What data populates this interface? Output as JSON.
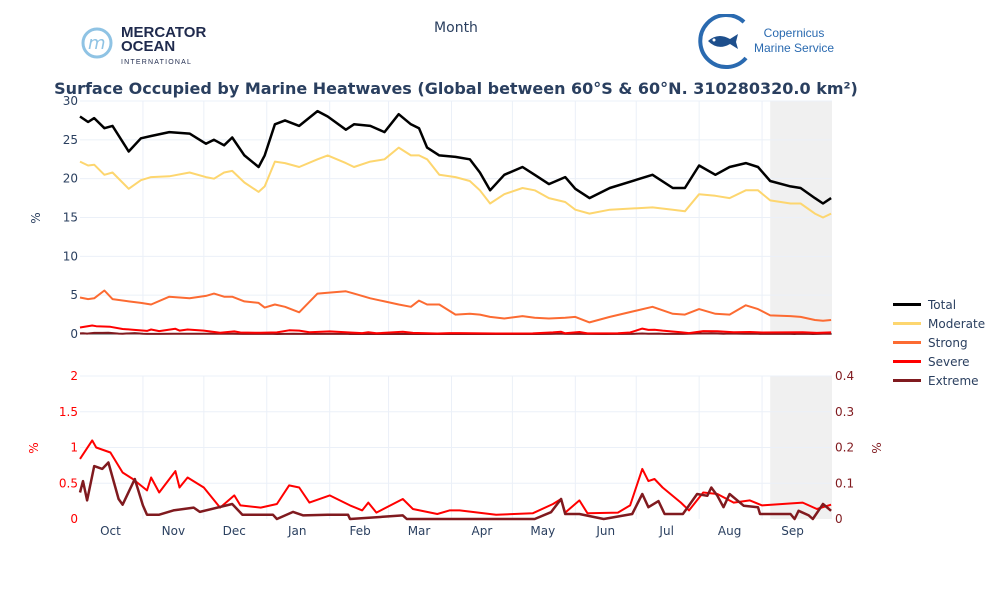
{
  "header": {
    "x_axis_title": "Month",
    "title": "Surface Occupied by Marine Heatwaves (Global between 60°S & 60°N. 310280320.0 km²)",
    "logo_left": {
      "line1": "MERCATOR",
      "line2": "OCEAN",
      "line3": "INTERNATIONAL"
    },
    "logo_right": {
      "line1": "Copernicus",
      "line2": "Marine Service"
    }
  },
  "colors": {
    "Total": "#000000",
    "Moderate": "#fdd66f",
    "Strong": "#fc6b32",
    "Severe": "#ff0000",
    "Extreme": "#801a1f",
    "axis_text": "#2a3f5f",
    "grid": "#ebf0f8",
    "shade": "#f0f0f0"
  },
  "chart_data": [
    {
      "type": "line",
      "title": "Surface Occupied by Marine Heatwaves (Global between 60°S & 60°N. 310280320.0 km²)",
      "xlabel": "Month",
      "ylabel": "%",
      "ylim": [
        0,
        30
      ],
      "yticks": [
        "0",
        "5",
        "10",
        "15",
        "20",
        "25",
        "30"
      ],
      "x_unit": "days since Oct 1",
      "month_ticks": [
        "Oct",
        "Nov",
        "Dec",
        "Jan",
        "Feb",
        "Mar",
        "Apr",
        "May",
        "Jun",
        "Jul",
        "Aug",
        "Sep"
      ],
      "shaded_from_day": 340,
      "grid": true,
      "legend_position": "right",
      "x": [
        0,
        4,
        7,
        12,
        16,
        24,
        30,
        35,
        44,
        54,
        62,
        66,
        71,
        75,
        81,
        88,
        91,
        96,
        101,
        108,
        117,
        122,
        131,
        135,
        143,
        150,
        157,
        163,
        167,
        171,
        177,
        185,
        192,
        197,
        202,
        209,
        218,
        224,
        231,
        239,
        244,
        251,
        261,
        282,
        292,
        298,
        305,
        313,
        320,
        328,
        334,
        340,
        350,
        355,
        362,
        366,
        370
      ],
      "series": [
        {
          "name": "Total",
          "values": [
            28,
            27.3,
            27.8,
            26.5,
            26.8,
            23.5,
            25.2,
            25.5,
            26,
            25.8,
            24.5,
            25,
            24.3,
            25.3,
            23,
            21.5,
            23,
            27,
            27.5,
            26.8,
            28.7,
            28,
            26.3,
            27,
            26.8,
            26,
            28.3,
            27,
            26.5,
            24,
            23,
            22.8,
            22.5,
            20.8,
            18.5,
            20.5,
            21.5,
            20.5,
            19.3,
            20.2,
            18.7,
            17.5,
            18.8,
            20.5,
            18.8,
            18.8,
            21.7,
            20.5,
            21.5,
            22,
            21.5,
            19.7,
            19,
            18.8,
            17.5,
            16.8,
            17.5
          ]
        },
        {
          "name": "Moderate",
          "values": [
            22.2,
            21.7,
            21.8,
            20.5,
            20.8,
            18.7,
            19.8,
            20.2,
            20.3,
            20.8,
            20.2,
            20,
            20.8,
            21,
            19.5,
            18.3,
            19,
            22.2,
            22,
            21.5,
            22.5,
            23,
            22,
            21.5,
            22.2,
            22.5,
            24,
            23,
            23,
            22.5,
            20.5,
            20.2,
            19.7,
            18.5,
            16.8,
            18,
            18.8,
            18.5,
            17.5,
            17,
            16,
            15.5,
            16,
            16.3,
            16,
            15.8,
            18,
            17.8,
            17.5,
            18.5,
            18.5,
            17.2,
            16.8,
            16.8,
            15.5,
            15,
            15.5
          ]
        },
        {
          "name": "Strong",
          "values": [
            4.7,
            4.5,
            4.6,
            5.6,
            4.5,
            4.2,
            4,
            3.8,
            4.8,
            4.6,
            4.9,
            5.2,
            4.8,
            4.8,
            4.2,
            4,
            3.4,
            3.8,
            3.5,
            2.8,
            5.2,
            5.3,
            5.5,
            5.2,
            4.6,
            4.2,
            3.8,
            3.5,
            4.3,
            3.8,
            3.8,
            2.5,
            2.6,
            2.5,
            2.2,
            2,
            2.3,
            2.1,
            2,
            2.1,
            2.2,
            1.5,
            2.2,
            3.5,
            2.6,
            2.5,
            3.2,
            2.6,
            2.5,
            3.7,
            3.2,
            2.4,
            2.3,
            2.2,
            1.8,
            1.7,
            1.8
          ]
        }
      ]
    },
    {
      "type": "line",
      "ylabel_left": "%",
      "ylabel_right": "%",
      "ylim_left": [
        0,
        2
      ],
      "ylim_right": [
        0,
        0.4
      ],
      "yticks_left": [
        "0",
        "0.5",
        "1",
        "1.5",
        "2"
      ],
      "yticks_right": [
        "0",
        "0.1",
        "0.2",
        "0.3",
        "0.4"
      ],
      "series": [
        {
          "name": "Severe",
          "axis": "left",
          "x": [
            0,
            6,
            8,
            15,
            21,
            26,
            33,
            35,
            39,
            47,
            49,
            53,
            61,
            69,
            76,
            79,
            89,
            97,
            103,
            108,
            113,
            123,
            133,
            139,
            142,
            146,
            159,
            164,
            176,
            182,
            187,
            205,
            223,
            233,
            237,
            239,
            246,
            250,
            265,
            271,
            277,
            280,
            283,
            287,
            296,
            300,
            307,
            314,
            322,
            330,
            336,
            346,
            356,
            363,
            370
          ],
          "values": [
            0.84,
            1.1,
            1.0,
            0.93,
            0.65,
            0.56,
            0.4,
            0.58,
            0.37,
            0.67,
            0.44,
            0.58,
            0.44,
            0.16,
            0.33,
            0.19,
            0.16,
            0.21,
            0.47,
            0.44,
            0.23,
            0.33,
            0.19,
            0.12,
            0.23,
            0.09,
            0.28,
            0.14,
            0.07,
            0.12,
            0.12,
            0.06,
            0.08,
            0.21,
            0.28,
            0.09,
            0.26,
            0.08,
            0.09,
            0.19,
            0.7,
            0.53,
            0.56,
            0.44,
            0.23,
            0.12,
            0.37,
            0.35,
            0.23,
            0.26,
            0.19,
            0.21,
            0.23,
            0.14,
            0.2
          ]
        },
        {
          "name": "Extreme",
          "axis": "right",
          "x": [
            0,
            1.5,
            3.5,
            7,
            11,
            14,
            19,
            21,
            27,
            31,
            33,
            39,
            46,
            56,
            59,
            75,
            80,
            95,
            97,
            105,
            110,
            122,
            132,
            133,
            159,
            161,
            182,
            224,
            232,
            237,
            239,
            246,
            258,
            272,
            277,
            280,
            285,
            288,
            297,
            304,
            309,
            311,
            314,
            317,
            320,
            327,
            334,
            335,
            350,
            352,
            354,
            359,
            361,
            366,
            370
          ],
          "values": [
            0.074,
            0.106,
            0.052,
            0.148,
            0.14,
            0.158,
            0.056,
            0.04,
            0.112,
            0.038,
            0.012,
            0.012,
            0.024,
            0.032,
            0.02,
            0.042,
            0.012,
            0.012,
            0,
            0.02,
            0.01,
            0.012,
            0.012,
            0,
            0.01,
            0,
            0,
            0,
            0.019,
            0.056,
            0.014,
            0.014,
            0,
            0.014,
            0.07,
            0.033,
            0.05,
            0.014,
            0.014,
            0.07,
            0.065,
            0.088,
            0.065,
            0.033,
            0.07,
            0.037,
            0.033,
            0.014,
            0.014,
            0,
            0.023,
            0.01,
            0,
            0.042,
            0.023
          ]
        }
      ]
    }
  ],
  "legend": [
    "Total",
    "Moderate",
    "Strong",
    "Severe",
    "Extreme"
  ]
}
